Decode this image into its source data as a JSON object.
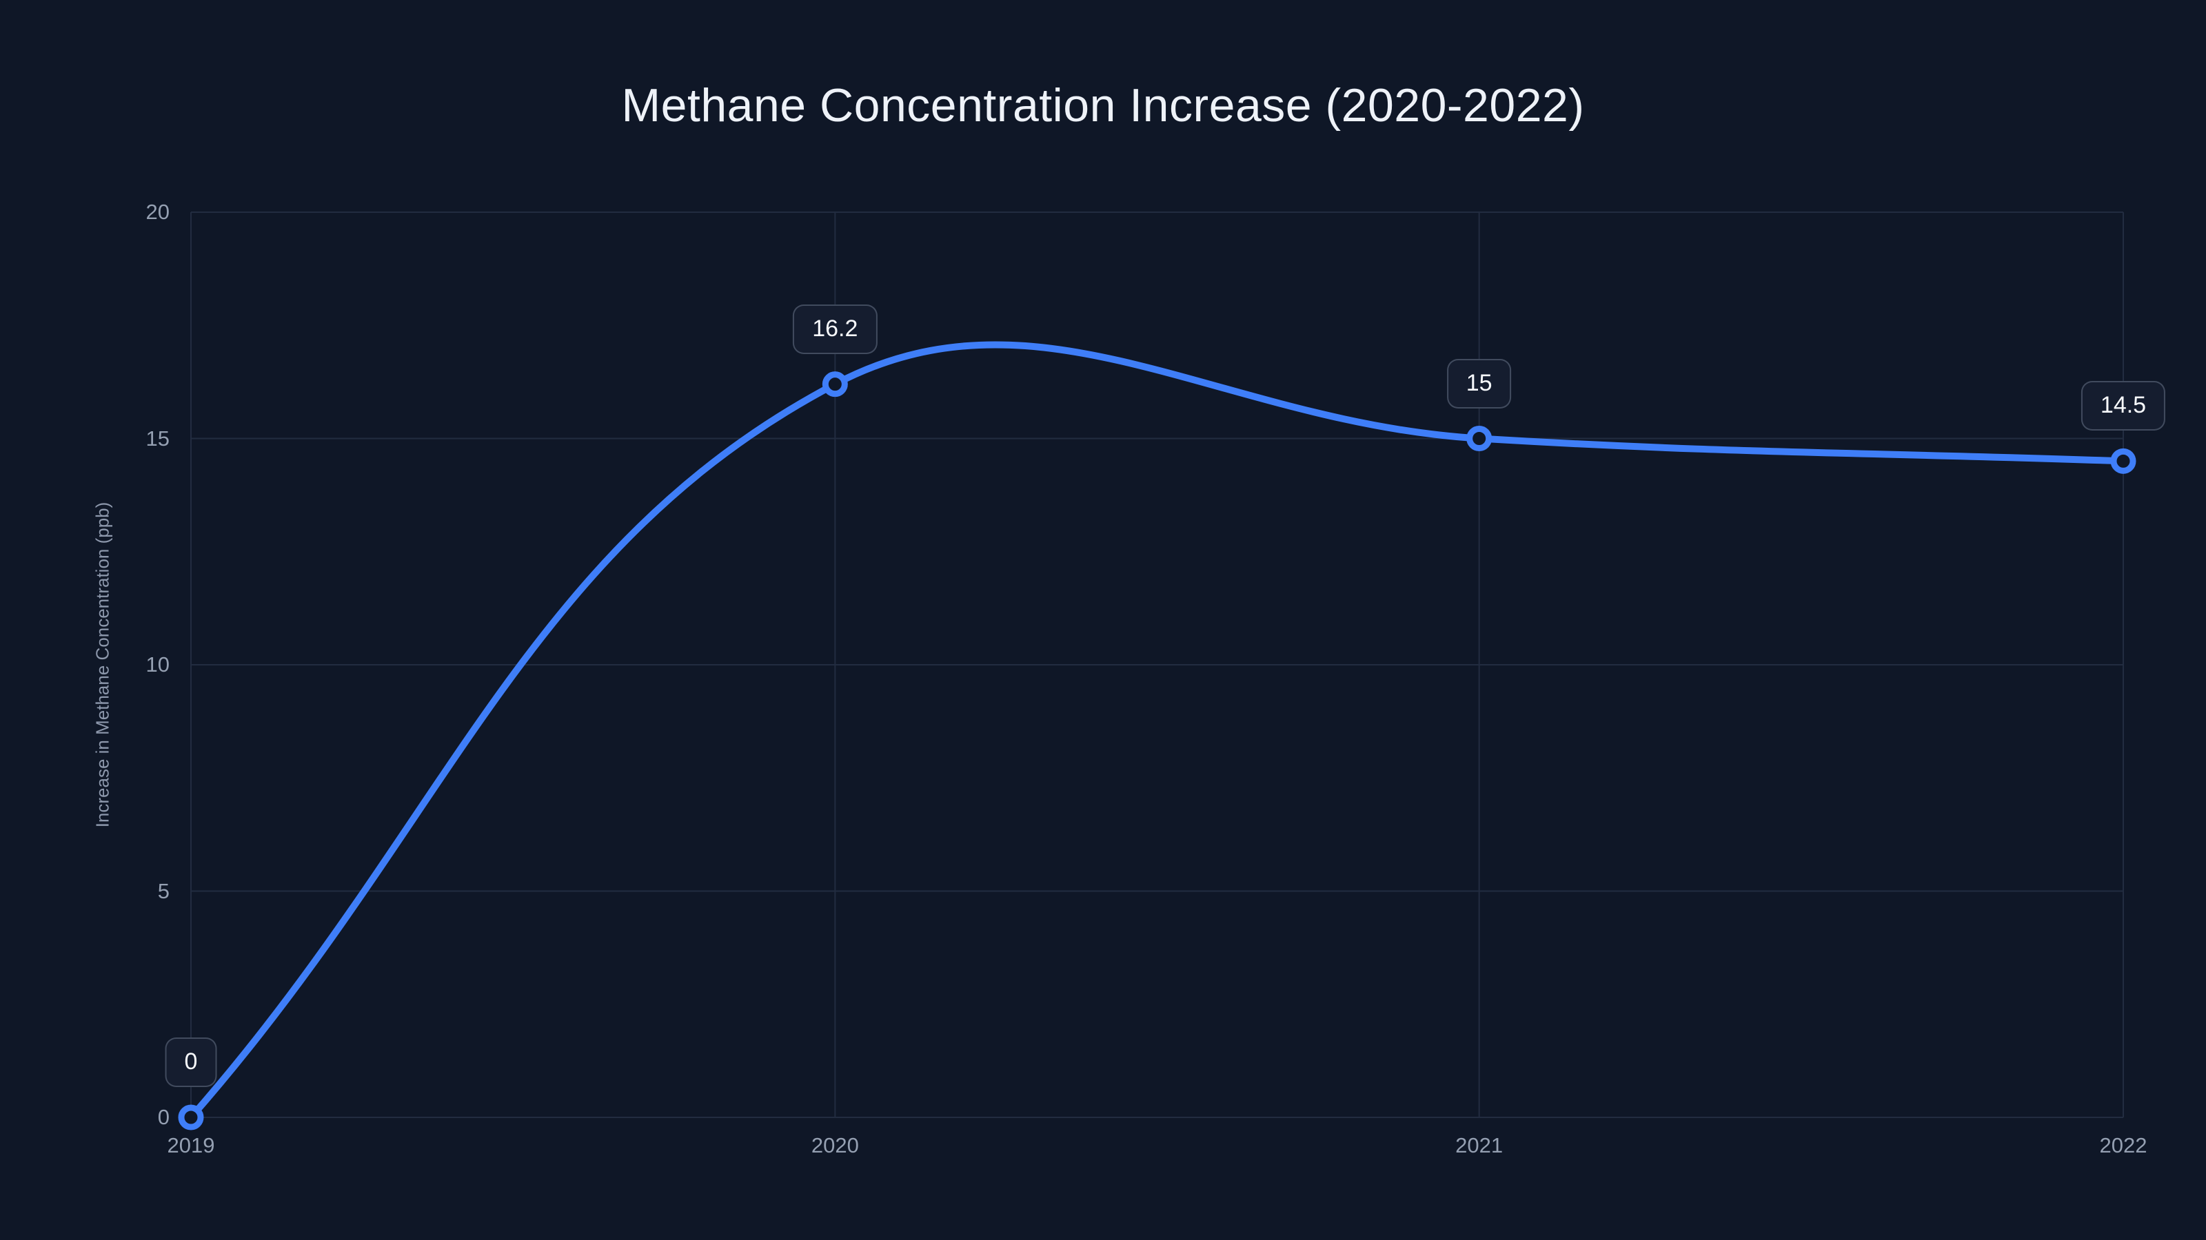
{
  "chart_data": {
    "type": "line",
    "title": "Methane Concentration Increase (2020-2022)",
    "categories": [
      "2019",
      "2020",
      "2021",
      "2022"
    ],
    "values": [
      0,
      16.2,
      15,
      14.5
    ],
    "point_labels": [
      "0",
      "16.2",
      "15",
      "14.5"
    ],
    "xlabel": "",
    "ylabel": "Increase in Methane Concentration (ppb)",
    "ylim": [
      0,
      20
    ],
    "yticks": [
      0,
      5,
      10,
      15,
      20
    ],
    "grid": true,
    "legend": false,
    "smooth": true,
    "line_tension": 0.4
  },
  "colors": {
    "background": "#0f1727",
    "line": "#3f7ef8",
    "grid": "#222c40",
    "tick_label": "#95a0b2",
    "axis_title": "#8d98ac",
    "title": "#eef2f8",
    "data_label_bg": "#151d2f",
    "data_label_border": "#3d485c",
    "data_label_text": "#f7f9fc",
    "marker_fill": "#0f1727"
  }
}
